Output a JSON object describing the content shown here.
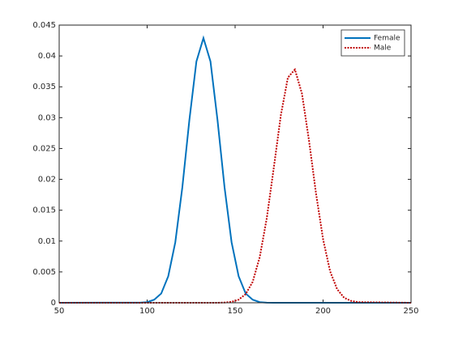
{
  "chart_data": {
    "type": "line",
    "x": [
      50,
      96,
      100,
      104,
      108,
      112,
      116,
      120,
      124,
      128,
      132,
      136,
      140,
      144,
      148,
      152,
      156,
      160,
      164,
      168,
      172,
      176,
      180,
      184,
      188,
      192,
      196,
      200,
      204,
      208,
      212,
      216,
      220,
      250
    ],
    "series": [
      {
        "name": "Female",
        "color": "#0072bd",
        "style": "solid",
        "values": [
          0,
          2e-05,
          0.0001,
          0.0005,
          0.0015,
          0.0043,
          0.0098,
          0.0187,
          0.0296,
          0.0391,
          0.0429,
          0.0391,
          0.0296,
          0.0187,
          0.0098,
          0.0043,
          0.0015,
          0.0005,
          0.0001,
          2e-05,
          0,
          0,
          0,
          0,
          0,
          0,
          0,
          0,
          0,
          0,
          0,
          0,
          0,
          0
        ]
      },
      {
        "name": "Male",
        "color": "#c00000",
        "style": "dotted",
        "values": [
          0,
          0,
          0,
          0,
          0,
          0,
          0,
          0,
          0,
          0,
          0,
          0,
          0,
          4e-05,
          0.00015,
          0.0005,
          0.0014,
          0.0034,
          0.0074,
          0.0137,
          0.0219,
          0.0304,
          0.0365,
          0.0378,
          0.0339,
          0.0263,
          0.0177,
          0.0103,
          0.0051,
          0.0022,
          0.0008,
          0.0003,
          0.0001,
          0
        ]
      }
    ],
    "xlim": [
      50,
      250
    ],
    "xticks": [
      50,
      100,
      150,
      200,
      250
    ],
    "ylim": [
      0,
      0.045
    ],
    "yticks": [
      0,
      0.005,
      0.01,
      0.015,
      0.02,
      0.025,
      0.03,
      0.035,
      0.04,
      0.045
    ],
    "legend": "northeast"
  }
}
